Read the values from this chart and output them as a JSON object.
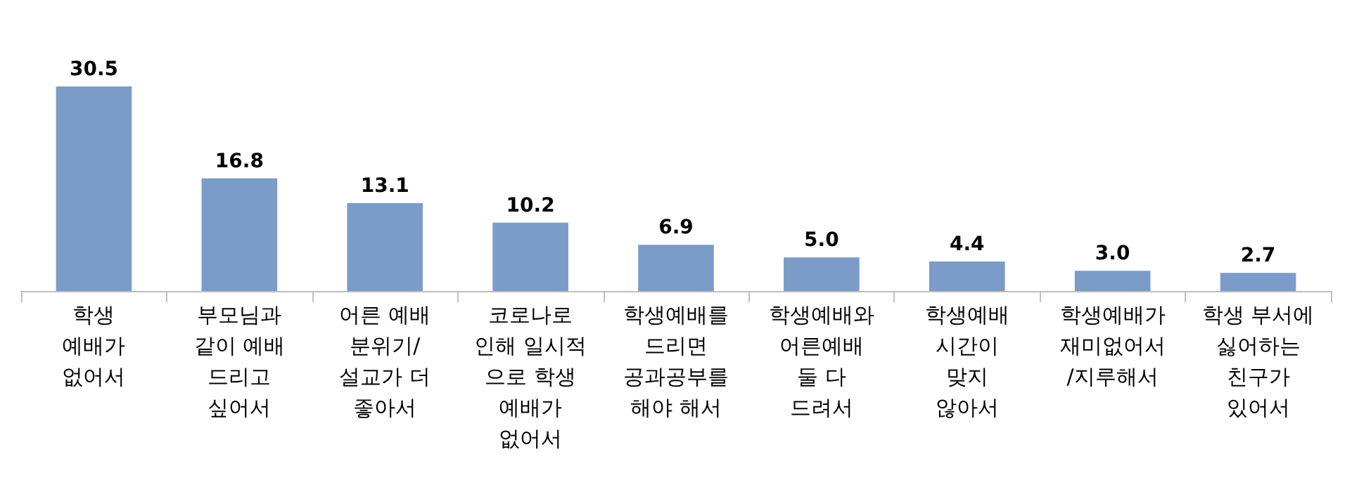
{
  "chart_data": {
    "type": "bar",
    "categories": [
      "학생\n예배가\n없어서",
      "부모님과\n같이 예배\n드리고\n싶어서",
      "어른 예배\n분위기/\n설교가 더\n좋아서",
      "코로나로\n인해 일시적\n으로 학생\n예배가\n없어서",
      "학생예배를\n드리면\n공과공부를\n해야 해서",
      "학생예배와\n어른예배\n둘 다\n드려서",
      "학생예배\n시간이\n맞지\n않아서",
      "학생예배가\n재미없어서\n/지루해서",
      "학생 부서에\n싫어하는\n친구가\n있어서"
    ],
    "values": [
      30.5,
      16.8,
      13.1,
      10.2,
      6.9,
      5.0,
      4.4,
      3.0,
      2.7
    ],
    "value_labels": [
      "30.5",
      "16.8",
      "13.1",
      "10.2",
      "6.9",
      "5.0",
      "4.4",
      "3.0",
      "2.7"
    ],
    "color": "#7b9bc8"
  }
}
